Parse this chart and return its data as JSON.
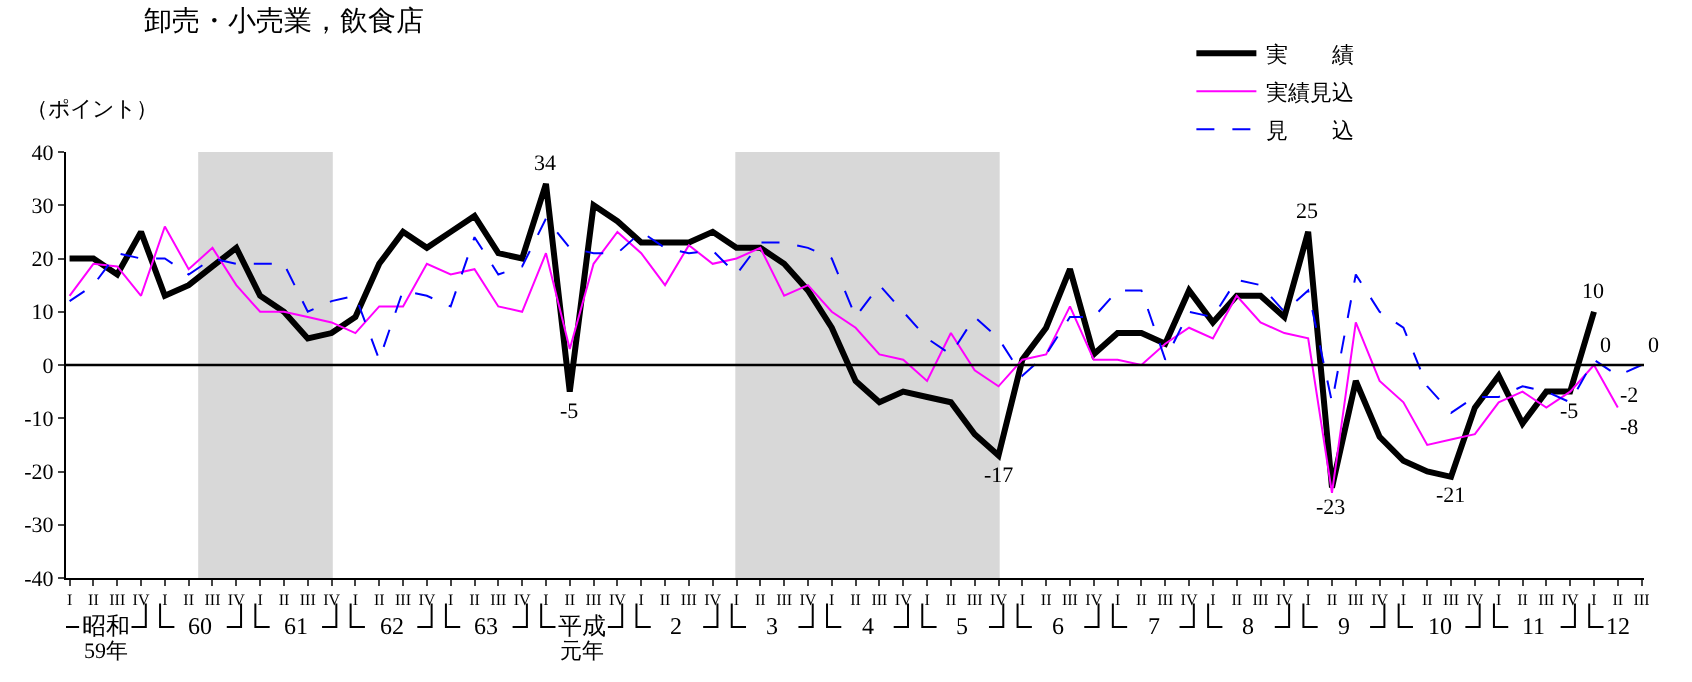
{
  "chart_data": {
    "type": "line",
    "title": "卸売・小売業，飲食店",
    "ylabel": "（ポイント）",
    "categories": [
      "I",
      "II",
      "III",
      "IV",
      "I",
      "II",
      "III",
      "IV",
      "I",
      "II",
      "III",
      "IV",
      "I",
      "II",
      "III",
      "IV",
      "I",
      "II",
      "III",
      "IV",
      "I",
      "II",
      "III",
      "IV",
      "I",
      "II",
      "III",
      "IV",
      "I",
      "II",
      "III",
      "IV",
      "I",
      "II",
      "III",
      "IV",
      "I",
      "II",
      "III",
      "IV",
      "I",
      "II",
      "III",
      "IV",
      "I",
      "II",
      "III",
      "IV",
      "I",
      "II",
      "III",
      "IV",
      "I",
      "II",
      "III",
      "IV",
      "I",
      "II",
      "III",
      "IV",
      "I",
      "II",
      "III",
      "IV",
      "I",
      "II",
      "III"
    ],
    "series": [
      {
        "name": "実　　績",
        "color": "#000000",
        "line_style": "solid",
        "values": [
          20,
          20,
          17,
          25,
          13,
          15,
          18.5,
          22,
          13,
          10,
          5,
          6,
          9,
          19,
          25,
          22,
          25,
          28,
          21,
          20,
          34,
          -5,
          30,
          27,
          23,
          23,
          23,
          25,
          22,
          22,
          19,
          14,
          7,
          -3,
          -7,
          -5,
          -6,
          -7,
          -13,
          -17,
          1,
          7,
          18,
          2,
          6,
          6,
          4,
          14,
          8,
          13,
          13,
          9,
          25,
          -23,
          -3,
          -13.5,
          -18,
          -20,
          -21,
          -8,
          -2,
          -11,
          -5,
          -5,
          10,
          null,
          null
        ],
        "value_labels": [
          null,
          null,
          null,
          null,
          null,
          null,
          null,
          null,
          null,
          null,
          null,
          null,
          null,
          null,
          null,
          null,
          null,
          null,
          null,
          null,
          "34",
          "-5",
          null,
          null,
          null,
          null,
          null,
          null,
          null,
          null,
          null,
          null,
          null,
          null,
          null,
          null,
          null,
          null,
          null,
          "-17",
          null,
          null,
          null,
          null,
          null,
          null,
          null,
          null,
          null,
          null,
          null,
          null,
          "25",
          "-23",
          null,
          null,
          null,
          null,
          "-21",
          null,
          null,
          null,
          null,
          "-5",
          "10",
          null,
          null
        ]
      },
      {
        "name": "実績見込",
        "color": "#ff00ff",
        "line_style": "solid",
        "values": [
          13,
          19,
          18.5,
          13,
          26,
          18,
          22,
          15,
          10,
          10,
          9,
          8,
          6,
          11,
          11,
          19,
          17,
          18,
          11,
          10,
          21,
          3,
          19,
          25,
          21,
          15,
          22.5,
          19,
          20,
          22,
          13,
          15,
          10,
          7,
          2,
          1,
          -3,
          6,
          -1,
          -4,
          1,
          2,
          11,
          1,
          1,
          0,
          4,
          7,
          5,
          13,
          8,
          6,
          5,
          -24,
          8,
          -3,
          -7,
          -15,
          -14,
          -13,
          -7,
          -5,
          -8,
          -5,
          0,
          -8,
          null
        ],
        "value_labels": [
          null,
          null,
          null,
          null,
          null,
          null,
          null,
          null,
          null,
          null,
          null,
          null,
          null,
          null,
          null,
          null,
          null,
          null,
          null,
          null,
          null,
          null,
          null,
          null,
          null,
          null,
          null,
          null,
          null,
          null,
          null,
          null,
          null,
          null,
          null,
          null,
          null,
          null,
          null,
          null,
          null,
          null,
          null,
          null,
          null,
          null,
          null,
          null,
          null,
          null,
          null,
          null,
          null,
          null,
          null,
          null,
          null,
          null,
          null,
          null,
          null,
          null,
          null,
          null,
          "0",
          "-8",
          null
        ]
      },
      {
        "name": "見　　込",
        "color": "#0000ff",
        "line_style": "dashed",
        "values": [
          12,
          15,
          21,
          20,
          20,
          17,
          20,
          19,
          19,
          19,
          10,
          12,
          13,
          1,
          14,
          13,
          11,
          24,
          17,
          18.5,
          27.5,
          22,
          21,
          21,
          25,
          22,
          21,
          21.5,
          17,
          23,
          23,
          22,
          20,
          9,
          15,
          10,
          5,
          2,
          9,
          5,
          -2,
          2,
          9,
          9,
          14,
          14,
          1,
          10,
          9,
          16,
          15,
          10,
          14,
          -7,
          17,
          10,
          7,
          -4,
          -9,
          -6,
          -6,
          -4,
          -5,
          -7,
          1,
          -2,
          0
        ],
        "value_labels": [
          null,
          null,
          null,
          null,
          null,
          null,
          null,
          null,
          null,
          null,
          null,
          null,
          null,
          null,
          null,
          null,
          null,
          null,
          null,
          null,
          null,
          null,
          null,
          null,
          null,
          null,
          null,
          null,
          null,
          null,
          null,
          null,
          null,
          null,
          null,
          null,
          null,
          null,
          null,
          null,
          null,
          null,
          null,
          null,
          null,
          null,
          null,
          null,
          null,
          null,
          null,
          null,
          null,
          null,
          null,
          null,
          null,
          null,
          null,
          null,
          null,
          null,
          null,
          null,
          null,
          "-2",
          "0"
        ]
      }
    ],
    "annotations": [
      "昭和",
      "60",
      "61",
      "62",
      "63",
      "平成",
      "2",
      "3",
      "4",
      "5",
      "6",
      "7",
      "8",
      "9",
      "10",
      "11",
      "12",
      "59年",
      "元年"
    ],
    "ref_lines": [
      {
        "axis": "y",
        "value": 0,
        "color": "#000000"
      }
    ],
    "ylim": [
      -40,
      40
    ],
    "yticks": [
      -40,
      -30,
      -20,
      -10,
      0,
      10,
      20,
      30,
      40
    ],
    "grid": false,
    "legend": "top right",
    "marker": "none"
  }
}
